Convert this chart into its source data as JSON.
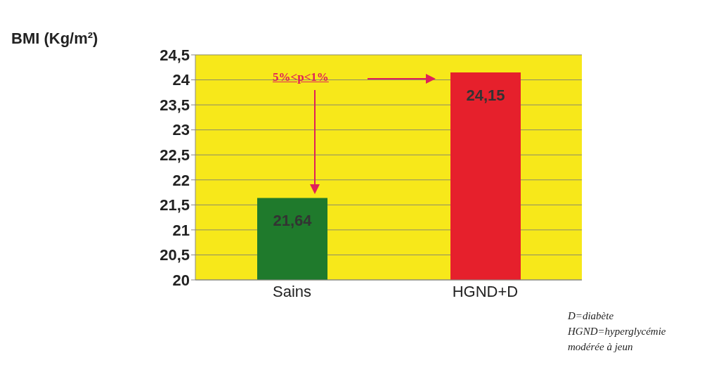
{
  "chart_data": {
    "type": "bar",
    "ylabel": "BMI (Kg/m²)",
    "categories": [
      "Sains",
      "HGND+D"
    ],
    "values": [
      21.64,
      24.15
    ],
    "colors": [
      "#1f7a2c",
      "#e6202c"
    ],
    "value_labels": [
      "21,64",
      "24,15"
    ],
    "ylim": [
      20,
      24.5
    ],
    "yticks": [
      20,
      {
        "value": 20.5,
        "label": "20,5"
      },
      21,
      {
        "value": 21.5,
        "label": "21,5"
      },
      22,
      {
        "value": 22.5,
        "label": "22,5"
      },
      23,
      {
        "value": 23.5,
        "label": "23,5"
      },
      24,
      {
        "value": 24.5,
        "label": "24,5"
      }
    ],
    "grid": "y",
    "annotations": [
      "5%<p<1%",
      "D=diabète",
      "HGND=hyperglycémie modérée à jeun"
    ]
  }
}
